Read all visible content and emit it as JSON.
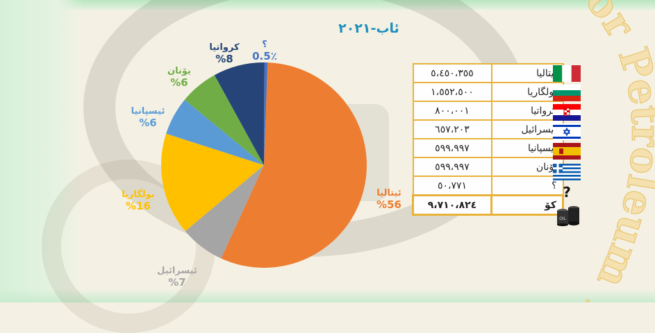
{
  "title": "ئاب-٢٠٢١",
  "chart_data": {
    "type": "pie",
    "title": "ئاب-٢٠٢١",
    "slices": [
      {
        "label": "ئیتالیا",
        "value": 56,
        "pct_label": "%56",
        "color": "#ed7d31",
        "label_color": "#ed7d31"
      },
      {
        "label": "ئیسرائیل",
        "value": 7,
        "pct_label": "%7",
        "color": "#a5a5a5",
        "label_color": "#a5a5a5"
      },
      {
        "label": "بولگاریا",
        "value": 16,
        "pct_label": "%16",
        "color": "#ffc000",
        "label_color": "#ffc000"
      },
      {
        "label": "ئیسپانیا",
        "value": 6,
        "pct_label": "%6",
        "color": "#5b9bd5",
        "label_color": "#5b9bd5"
      },
      {
        "label": "یۆنان",
        "value": 6,
        "pct_label": "%6",
        "color": "#70ad47",
        "label_color": "#70ad47"
      },
      {
        "label": "کرواتیا",
        "value": 8,
        "pct_label": "%8",
        "color": "#264478",
        "label_color": "#264478"
      },
      {
        "label": "؟",
        "value": 0.5,
        "pct_label": "0.5٪",
        "color": "#4472c4",
        "label_color": "#4472c4"
      }
    ]
  },
  "table": {
    "rows": [
      {
        "name": "ئیتالیا",
        "value": "٥،٤٥٠،٣٥٥",
        "flag": "italy-flag"
      },
      {
        "name": "بولگاریا",
        "value": "١،٥٥٢،٥٠٠",
        "flag": "bulgaria-flag"
      },
      {
        "name": "کرواتیا",
        "value": "٨٠٠،٠٠١",
        "flag": "croatia-flag"
      },
      {
        "name": "ئیسرائیل",
        "value": "٦٥٧،٢٠٣",
        "flag": "israel-flag"
      },
      {
        "name": "ئیسپانیا",
        "value": "٥٩٩،٩٩٧",
        "flag": "spain-flag"
      },
      {
        "name": "یۆنان",
        "value": "٥٩٩،٩٩٧",
        "flag": "greece-flag"
      },
      {
        "name": "؟",
        "value": "٥٠،٧٧١",
        "flag": "unknown-icon"
      }
    ],
    "total": {
      "name": "کۆ",
      "value": "٩،٧١٠،٨٢٤",
      "icon": "oil-barrel-icon"
    }
  },
  "watermark": "For Petroleum Tra"
}
